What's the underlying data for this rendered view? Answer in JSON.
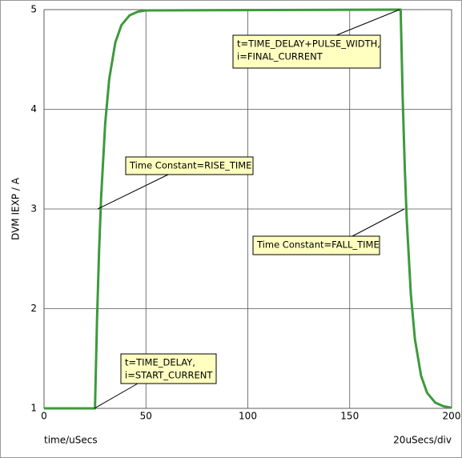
{
  "chart_data": {
    "type": "line",
    "xlabel": "time/uSecs",
    "ylabel": "DVM IEXP / A",
    "xscale_label": "20uSecs/div",
    "x": [
      0,
      25,
      26,
      27,
      28,
      30,
      32,
      35,
      38,
      42,
      46,
      50,
      175,
      176,
      177,
      178,
      180,
      182,
      185,
      188,
      192,
      196,
      200
    ],
    "values": [
      1,
      1,
      1.885,
      2.574,
      3.11,
      3.854,
      4.305,
      4.672,
      4.845,
      4.943,
      4.979,
      4.992,
      5,
      4.115,
      3.426,
      2.89,
      2.146,
      1.695,
      1.328,
      1.155,
      1.057,
      1.021,
      1.006
    ],
    "color": "#3c9a3c",
    "xlim": [
      0,
      200
    ],
    "ylim": [
      1,
      5
    ],
    "xticks": [
      0,
      50,
      100,
      150,
      200
    ],
    "yticks": [
      1,
      2,
      3,
      4,
      5
    ],
    "grid": true,
    "annotations": [
      {
        "lines": [
          "t=TIME_DELAY+PULSE_WIDTH,",
          "i=FINAL_CURRENT"
        ]
      },
      {
        "lines": [
          "Time Constant=RISE_TIME"
        ]
      },
      {
        "lines": [
          "Time Constant=FALL_TIME"
        ]
      },
      {
        "lines": [
          "t=TIME_DELAY,",
          "i=START_CURRENT"
        ]
      }
    ]
  }
}
